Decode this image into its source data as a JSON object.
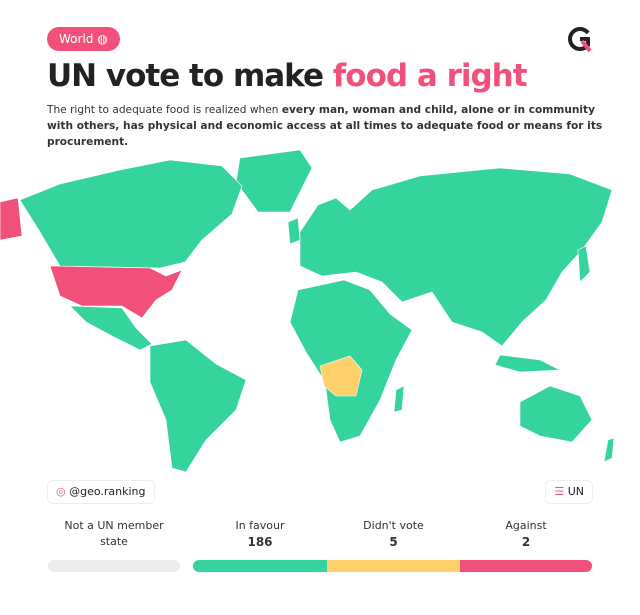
{
  "badge": "World",
  "title": {
    "plain": "UN vote to make",
    "highlight": "food a right"
  },
  "subtitle": {
    "plain": "The right to adequate food is realized when",
    "bold": "every man, woman and child, alone or in community with others, has physical and economic access at all times to adequate food or means for its procurement."
  },
  "credits": {
    "instagram": "@geo.ranking",
    "source": "UN"
  },
  "legend": [
    {
      "label": "Not a UN member state",
      "color": "#ececec"
    },
    {
      "label": "In favour",
      "count": 186,
      "color": "#35d49c"
    },
    {
      "label": "Didn't vote",
      "count": 5,
      "color": "#fdd06c"
    },
    {
      "label": "Against",
      "count": 2,
      "color": "#f0507a"
    }
  ]
}
